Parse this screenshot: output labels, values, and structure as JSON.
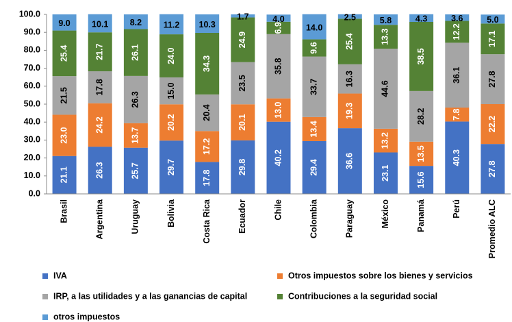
{
  "chart_data": {
    "type": "stacked_bar",
    "categories": [
      "Brasil",
      "Argentina",
      "Uruguay",
      "Bolivia",
      "Costa Rica",
      "Ecuador",
      "Chile",
      "Colombia",
      "Paraguay",
      "México",
      "Panamá",
      "Perú",
      "Promedio ALC"
    ],
    "series": [
      {
        "name": "IVA",
        "color": "#4472c4",
        "values": [
          21.1,
          26.3,
          25.7,
          29.7,
          17.8,
          29.8,
          40.2,
          29.4,
          36.6,
          23.1,
          15.6,
          40.3,
          27.8
        ],
        "value_labels": [
          "21.1",
          "26.3",
          "25.7",
          "29.7",
          "17.8",
          "29.8",
          "40.2",
          "29.4",
          "36.6",
          "23.1",
          "15.6",
          "40.3",
          "27.8"
        ]
      },
      {
        "name": "Otros impuestos sobre los bienes y servicios",
        "color": "#ed7d31",
        "values": [
          23.0,
          24.2,
          13.7,
          20.2,
          17.2,
          20.1,
          13.0,
          13.4,
          19.3,
          13.2,
          13.5,
          7.8,
          22.2
        ],
        "value_labels": [
          "23.0",
          "24.2",
          "13.7",
          "20.2",
          "17.2",
          "20.1",
          "13.0",
          "13.4",
          "19.3",
          "13.2",
          "13.5",
          "7.8",
          "22.2"
        ]
      },
      {
        "name": "IRP, a las utilidades y a las ganancias de capital",
        "color": "#a5a5a5",
        "values": [
          21.5,
          17.8,
          26.3,
          15.0,
          20.4,
          23.5,
          35.8,
          33.7,
          16.3,
          44.6,
          28.2,
          36.1,
          27.8
        ],
        "value_labels": [
          "21.5",
          "17.8",
          "26.3",
          "15.0",
          "20.4",
          "23.5",
          "35.8",
          "33.7",
          "16.3",
          "44.6",
          "28.2",
          "36.1",
          "27.8"
        ]
      },
      {
        "name": "Contribuciones a la seguridad social",
        "color": "#548235",
        "values": [
          25.4,
          21.7,
          26.1,
          24.0,
          34.3,
          24.9,
          6.9,
          9.6,
          25.4,
          13.3,
          38.5,
          12.2,
          17.1
        ],
        "value_labels": [
          "25.4",
          "21.7",
          "26.1",
          "24.0",
          "34.3",
          "24.9",
          "6.9",
          "9.6",
          "25.4",
          "13.3",
          "38.5",
          "12.2",
          "17.1"
        ]
      },
      {
        "name": "otros impuestos",
        "color": "#5b9bd5",
        "values": [
          9.0,
          10.1,
          8.2,
          11.2,
          10.3,
          1.7,
          4.0,
          14.0,
          2.5,
          5.8,
          4.3,
          3.6,
          5.0
        ],
        "value_labels": [
          "9.0",
          "10.1",
          "8.2",
          "11.2",
          "10.3",
          "1.7",
          "4.0",
          "14.0",
          "2.5",
          "5.8",
          "4.3",
          "3.6",
          "5.0"
        ]
      }
    ],
    "ylim": [
      0,
      100
    ],
    "yticks": [
      {
        "value": 0,
        "label": "0.0"
      },
      {
        "value": 10,
        "label": "10.0"
      },
      {
        "value": 20,
        "label": "20.0"
      },
      {
        "value": 30,
        "label": "30.0"
      },
      {
        "value": 40,
        "label": "40.0"
      },
      {
        "value": 50,
        "label": "50.0"
      },
      {
        "value": 60,
        "label": "60.0"
      },
      {
        "value": 70,
        "label": "70.0"
      },
      {
        "value": 80,
        "label": "80.0"
      },
      {
        "value": 90,
        "label": "90.0"
      },
      {
        "value": 100,
        "label": "100.0"
      }
    ],
    "grid": false,
    "legend": "bottom"
  }
}
